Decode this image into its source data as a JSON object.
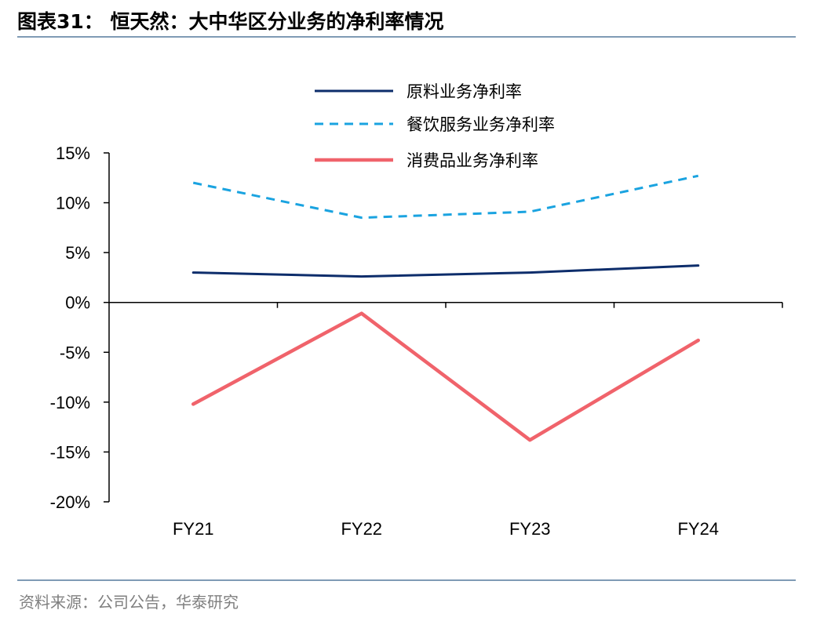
{
  "figure": {
    "title": "图表31： 恒天然：大中华区分业务的净利率情况",
    "source": "资料来源：公司公告，华泰研究"
  },
  "chart_data": {
    "type": "line",
    "categories": [
      "FY21",
      "FY22",
      "FY23",
      "FY24"
    ],
    "series": [
      {
        "name": "原料业务净利率",
        "values": [
          3.0,
          2.6,
          3.0,
          3.7
        ],
        "color": "#0d2d6b",
        "style": "solid"
      },
      {
        "name": "餐饮服务业务净利率",
        "values": [
          12.0,
          8.5,
          9.1,
          12.7
        ],
        "color": "#1aa3e0",
        "style": "dashed"
      },
      {
        "name": "消费品业务净利率",
        "values": [
          -10.2,
          -1.1,
          -13.8,
          -3.8
        ],
        "color": "#f0636b",
        "style": "solid"
      }
    ],
    "yticks": [
      "15%",
      "10%",
      "5%",
      "0%",
      "-5%",
      "-10%",
      "-15%",
      "-20%"
    ],
    "ylim": [
      -20,
      15
    ],
    "unit": "%",
    "legend_position": "top-center",
    "grid": false
  }
}
